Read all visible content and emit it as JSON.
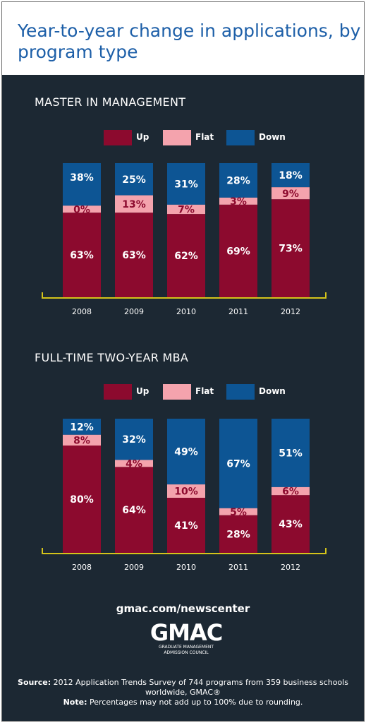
{
  "title": "Year-to-year change in applications, by program type",
  "legend": {
    "up": "Up",
    "flat": "Flat",
    "down": "Down"
  },
  "colors": {
    "up": "#8c0a2e",
    "flat": "#f4a3ad",
    "down": "#0d5594",
    "axis": "#d4c41a",
    "background": "#1c2833"
  },
  "chart_data": [
    {
      "type": "bar",
      "stacked": true,
      "title": "MASTER IN MANAGEMENT",
      "categories": [
        "2008",
        "2009",
        "2010",
        "2011",
        "2012"
      ],
      "series": [
        {
          "name": "Up",
          "values": [
            63,
            63,
            62,
            69,
            73
          ]
        },
        {
          "name": "Flat",
          "values": [
            0,
            13,
            7,
            3,
            9
          ]
        },
        {
          "name": "Down",
          "values": [
            38,
            25,
            31,
            28,
            18
          ]
        }
      ],
      "labels": {
        "Up": [
          "63%",
          "63%",
          "62%",
          "69%",
          "73%"
        ],
        "Flat": [
          "0%",
          "13%",
          "7%",
          "3%",
          "9%"
        ],
        "Down": [
          "38%",
          "25%",
          "31%",
          "28%",
          "18%"
        ]
      },
      "ylim": [
        0,
        100
      ],
      "legend_position": "top"
    },
    {
      "type": "bar",
      "stacked": true,
      "title": "FULL-TIME TWO-YEAR MBA",
      "categories": [
        "2008",
        "2009",
        "2010",
        "2011",
        "2012"
      ],
      "series": [
        {
          "name": "Up",
          "values": [
            80,
            64,
            41,
            28,
            43
          ]
        },
        {
          "name": "Flat",
          "values": [
            8,
            4,
            10,
            5,
            6
          ]
        },
        {
          "name": "Down",
          "values": [
            12,
            32,
            49,
            67,
            51
          ]
        }
      ],
      "labels": {
        "Up": [
          "80%",
          "64%",
          "41%",
          "28%",
          "43%"
        ],
        "Flat": [
          "8%",
          "4%",
          "10%",
          "5%",
          "6%"
        ],
        "Down": [
          "12%",
          "32%",
          "49%",
          "67%",
          "51%"
        ]
      },
      "ylim": [
        0,
        100
      ],
      "legend_position": "top"
    }
  ],
  "footer": {
    "url": "gmac.com/newscenter",
    "logo_text": "GMAC",
    "logo_subtitle": "GRADUATE MANAGEMENT ADMISSION COUNCIL",
    "source_label": "Source:",
    "source_text": "2012 Application Trends Survey of 744 programs from 359 business schools worldwide, GMAC®",
    "note_label": "Note:",
    "note_text": "Percentages may not add up to 100% due to rounding."
  }
}
